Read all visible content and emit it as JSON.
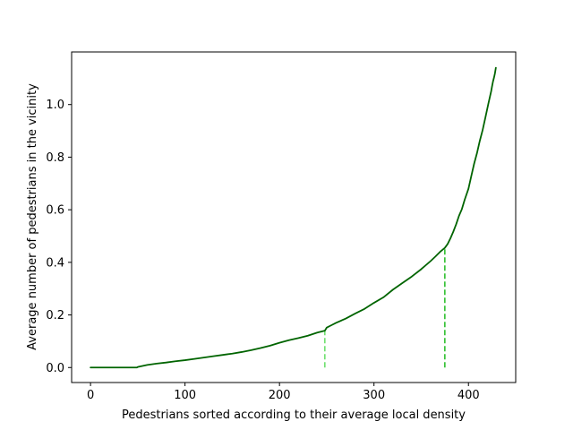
{
  "chart_data": {
    "type": "line",
    "title": "",
    "xlabel": "Pedestrians sorted according to their average local density",
    "ylabel": "Average number of pedestrians in the vicinity",
    "xlim": [
      -20,
      450
    ],
    "ylim": [
      -0.057,
      1.2
    ],
    "x_ticks": [
      0,
      100,
      200,
      300,
      400
    ],
    "y_ticks": [
      0.0,
      0.2,
      0.4,
      0.6,
      0.8,
      1.0
    ],
    "x_tick_labels": [
      "0",
      "100",
      "200",
      "300",
      "400"
    ],
    "y_tick_labels": [
      "0.0",
      "0.2",
      "0.4",
      "0.6",
      "0.8",
      "1.0"
    ],
    "grid": false,
    "series": [
      {
        "color": "#006400",
        "x": [
          0,
          10,
          20,
          30,
          40,
          49,
          50,
          55,
          60,
          70,
          80,
          90,
          100,
          110,
          120,
          130,
          140,
          150,
          160,
          170,
          180,
          190,
          200,
          210,
          220,
          230,
          240,
          248,
          250,
          255,
          260,
          270,
          280,
          290,
          300,
          310,
          320,
          330,
          340,
          350,
          360,
          365,
          370,
          375,
          378,
          381,
          384,
          387,
          390,
          393,
          396,
          400,
          403,
          406,
          409,
          412,
          415,
          418,
          421,
          424,
          425,
          426,
          427,
          428,
          429
        ],
        "values": [
          0.0,
          0.0,
          0.0,
          0.0,
          0.0,
          0.0,
          0.002,
          0.006,
          0.01,
          0.015,
          0.019,
          0.024,
          0.028,
          0.033,
          0.038,
          0.043,
          0.048,
          0.053,
          0.059,
          0.066,
          0.074,
          0.083,
          0.094,
          0.104,
          0.112,
          0.121,
          0.133,
          0.14,
          0.152,
          0.161,
          0.17,
          0.186,
          0.205,
          0.223,
          0.246,
          0.267,
          0.296,
          0.321,
          0.346,
          0.374,
          0.405,
          0.422,
          0.44,
          0.455,
          0.47,
          0.492,
          0.517,
          0.545,
          0.577,
          0.602,
          0.638,
          0.68,
          0.728,
          0.775,
          0.815,
          0.862,
          0.903,
          0.952,
          1.002,
          1.05,
          1.07,
          1.088,
          1.102,
          1.118,
          1.14
        ]
      }
    ],
    "markers": [
      {
        "x": 248,
        "y_from": 0.0,
        "y_to": 0.14,
        "color": "#66dd66",
        "style": "dashed"
      },
      {
        "x": 375,
        "y_from": 0.0,
        "y_to": 0.455,
        "color": "#22bb22",
        "style": "dashed"
      }
    ]
  }
}
